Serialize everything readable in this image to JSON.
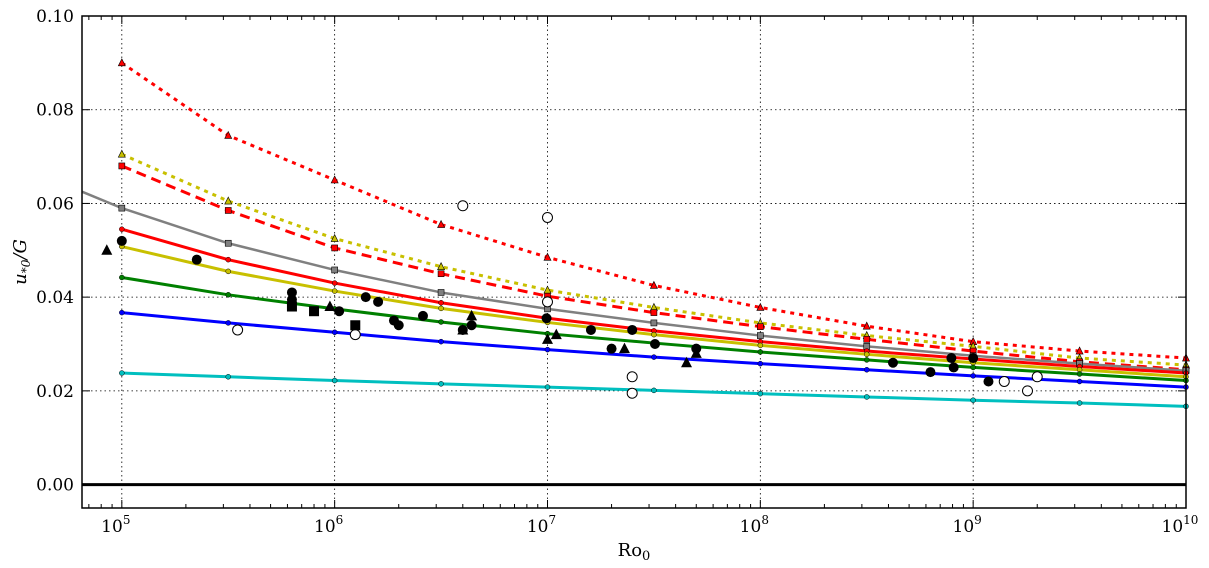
{
  "chart_data": {
    "type": "line",
    "xlabel": "Ro₀",
    "ylabel": "u₀/G",
    "xscale": "log",
    "xlim": [
      65000,
      10000000000
    ],
    "ylim": [
      -0.005,
      0.1
    ],
    "grid": true,
    "x_ticks": [
      {
        "value": 100000,
        "base": "10",
        "exp": "5"
      },
      {
        "value": 1000000,
        "base": "10",
        "exp": "6"
      },
      {
        "value": 10000000,
        "base": "10",
        "exp": "7"
      },
      {
        "value": 100000000,
        "base": "10",
        "exp": "8"
      },
      {
        "value": 1000000000,
        "base": "10",
        "exp": "9"
      },
      {
        "value": 10000000000,
        "base": "10",
        "exp": "10"
      }
    ],
    "y_ticks": [
      {
        "value": 0.0,
        "label": "0.00"
      },
      {
        "value": 0.02,
        "label": "0.02"
      },
      {
        "value": 0.04,
        "label": "0.04"
      },
      {
        "value": 0.06,
        "label": "0.06"
      },
      {
        "value": 0.08,
        "label": "0.08"
      },
      {
        "value": 0.1,
        "label": "0.10"
      }
    ],
    "x_nodes": [
      100000,
      316228,
      1000000,
      3162278,
      10000000,
      31622777,
      100000000,
      316227766,
      1000000000,
      3162277660,
      10000000000
    ],
    "series": [
      {
        "color": "#ff0000",
        "dash": "dotted",
        "width": 3,
        "marker": "triangle",
        "values": [
          0.09,
          0.0745,
          0.065,
          0.0555,
          0.0485,
          0.0425,
          0.0378,
          0.0338,
          0.0305,
          0.0285,
          0.027
        ]
      },
      {
        "color": "#c8c000",
        "dash": "dotted",
        "width": 3,
        "marker": "triangle",
        "values": [
          0.0705,
          0.0605,
          0.0525,
          0.0465,
          0.0415,
          0.0378,
          0.0345,
          0.0318,
          0.0295,
          0.027,
          0.0255
        ]
      },
      {
        "color": "#ff0000",
        "dash": "dashed",
        "width": 3,
        "marker": "square",
        "values": [
          0.068,
          0.0585,
          0.0505,
          0.045,
          0.0402,
          0.0367,
          0.0337,
          0.031,
          0.0285,
          0.0262,
          0.0245
        ]
      },
      {
        "color": "#808080",
        "dash": "solid",
        "width": 2.5,
        "marker": "square",
        "values": [
          0.059,
          0.0515,
          0.0458,
          0.041,
          0.0375,
          0.0345,
          0.0318,
          0.0295,
          0.0275,
          0.0258,
          0.0243
        ]
      },
      {
        "color": "#ff0000",
        "dash": "solid",
        "width": 3,
        "marker": "circle",
        "values": [
          0.0545,
          0.048,
          0.043,
          0.0388,
          0.0355,
          0.0328,
          0.0305,
          0.0285,
          0.0268,
          0.0252,
          0.0238
        ]
      },
      {
        "color": "#c8c000",
        "dash": "solid",
        "width": 3,
        "marker": "circle",
        "values": [
          0.0508,
          0.0455,
          0.0413,
          0.0376,
          0.0346,
          0.032,
          0.0297,
          0.0278,
          0.026,
          0.0245,
          0.023
        ]
      },
      {
        "color": "#008000",
        "dash": "solid",
        "width": 3,
        "marker": "circle",
        "values": [
          0.0442,
          0.0405,
          0.0375,
          0.0347,
          0.0322,
          0.0302,
          0.0283,
          0.0266,
          0.025,
          0.0236,
          0.0222
        ]
      },
      {
        "color": "#0000ff",
        "dash": "solid",
        "width": 3,
        "marker": "circle",
        "values": [
          0.0367,
          0.0345,
          0.0325,
          0.0305,
          0.0288,
          0.0272,
          0.0258,
          0.0245,
          0.0232,
          0.022,
          0.0208
        ]
      },
      {
        "color": "#00bfbf",
        "dash": "solid",
        "width": 3,
        "marker": "circle",
        "values": [
          0.0238,
          0.023,
          0.0222,
          0.0215,
          0.0208,
          0.0201,
          0.0194,
          0.0187,
          0.018,
          0.0174,
          0.0167
        ]
      }
    ],
    "grey_extension": {
      "color": "#808080",
      "x": [
        65000,
        100000
      ],
      "y": [
        0.0625,
        0.059
      ]
    },
    "scatter": {
      "filled_circles": [
        [
          100000,
          0.052
        ],
        [
          225000,
          0.048
        ],
        [
          630000,
          0.041
        ],
        [
          630000,
          0.0395
        ],
        [
          1050000,
          0.037
        ],
        [
          1400000,
          0.04
        ],
        [
          1600000,
          0.039
        ],
        [
          1900000,
          0.035
        ],
        [
          2000000,
          0.034
        ],
        [
          2600000,
          0.036
        ],
        [
          4000000,
          0.033
        ],
        [
          4400000,
          0.034
        ],
        [
          9900000,
          0.0355
        ],
        [
          16000000,
          0.033
        ],
        [
          20000000,
          0.029
        ],
        [
          25000000,
          0.033
        ],
        [
          32000000,
          0.03
        ],
        [
          50000000,
          0.029
        ],
        [
          420000000,
          0.026
        ],
        [
          630000000,
          0.024
        ],
        [
          790000000,
          0.027
        ],
        [
          810000000,
          0.025
        ],
        [
          1000000000,
          0.027
        ],
        [
          1180000000,
          0.022
        ]
      ],
      "open_circles": [
        [
          350000,
          0.033
        ],
        [
          1250000,
          0.032
        ],
        [
          4000000,
          0.0595
        ],
        [
          10000000,
          0.057
        ],
        [
          10000000,
          0.039
        ],
        [
          25000000,
          0.023
        ],
        [
          25000000,
          0.0195
        ],
        [
          1400000000,
          0.022
        ],
        [
          1800000000,
          0.02
        ],
        [
          2000000000,
          0.023
        ]
      ],
      "filled_squares": [
        [
          630000,
          0.038
        ],
        [
          800000,
          0.037
        ],
        [
          1250000,
          0.034
        ]
      ],
      "filled_triangles": [
        [
          85000,
          0.05
        ],
        [
          950000,
          0.038
        ],
        [
          4000000,
          0.033
        ],
        [
          4400000,
          0.036
        ],
        [
          10000000,
          0.031
        ],
        [
          11000000,
          0.032
        ],
        [
          23000000,
          0.029
        ],
        [
          45000000,
          0.026
        ],
        [
          50000000,
          0.028
        ]
      ]
    },
    "zero_line": {
      "y": 0,
      "color": "#000000"
    }
  }
}
